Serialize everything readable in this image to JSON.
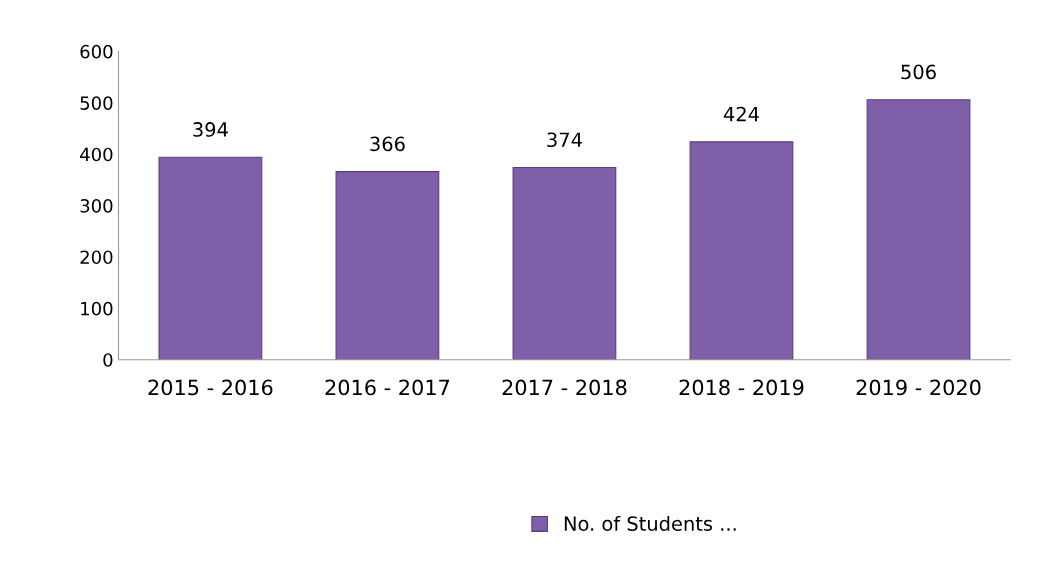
{
  "chart_data": {
    "type": "bar",
    "categories": [
      "2015 - 2016",
      "2016 - 2017",
      "2017 - 2018",
      "2018 - 2019",
      "2019 - 2020"
    ],
    "series": [
      {
        "name": "No. of Students ...",
        "color": "#7f5fa8",
        "values": [
          394,
          366,
          374,
          424,
          506
        ]
      }
    ],
    "ylim": [
      0,
      600
    ],
    "yticks": [
      0,
      100,
      200,
      300,
      400,
      500,
      600
    ],
    "data_labels": true,
    "grid": false,
    "legend": "bottom"
  }
}
